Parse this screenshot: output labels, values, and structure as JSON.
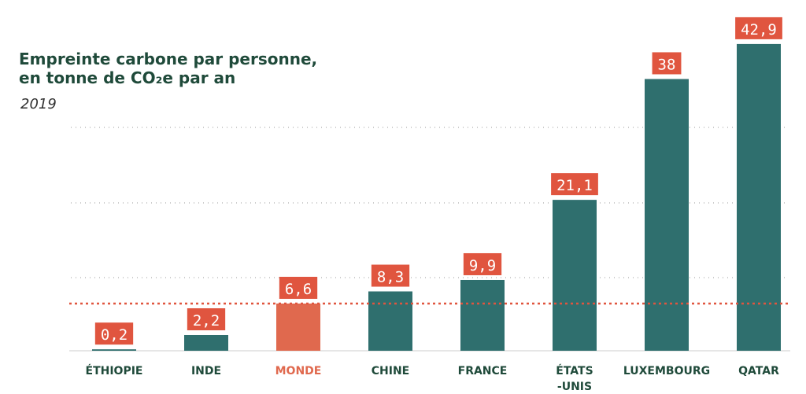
{
  "chart_data": {
    "type": "bar",
    "title": [
      "Empreinte carbone par personne,",
      "en tonne de CO₂e par an"
    ],
    "subtitle": "2019",
    "categories": [
      "ÉTHIOPIE",
      "INDE",
      "MONDE",
      "CHINE",
      "FRANCE",
      "ÉTATS -UNIS",
      "LUXEMBOURG",
      "QATAR"
    ],
    "values": [
      0.2,
      2.2,
      6.6,
      8.3,
      9.9,
      21.1,
      38,
      42.9
    ],
    "value_labels": [
      "0,2",
      "2,2",
      "6,6",
      "8,3",
      "9,9",
      "21,1",
      "38",
      "42,9"
    ],
    "color": "#2f6f6e",
    "colors": [
      "#2f6f6e",
      "#2f6f6e",
      "#e0694e",
      "#2f6f6e",
      "#2f6f6e",
      "#2f6f6e",
      "#2f6f6e",
      "#2f6f6e"
    ],
    "label_box_color": "#e0553f",
    "reference_line": {
      "value": 6.6,
      "color": "#e0553f"
    },
    "ylim": [
      0,
      43
    ]
  }
}
